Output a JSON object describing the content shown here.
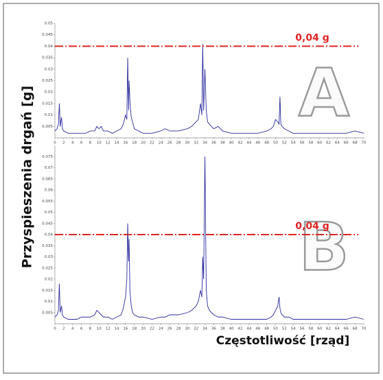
{
  "axis_labels": {
    "y": "Przyspieszenia drgań [g]",
    "x": "Częstotliwość [rząd]"
  },
  "chart_data": [
    {
      "type": "line",
      "panel_label": "A",
      "threshold": {
        "value": 0.04,
        "label": "0,04 g",
        "color": "#e02424"
      },
      "xlim": [
        0,
        70
      ],
      "xticks": [
        0,
        2,
        4,
        6,
        8,
        10,
        12,
        14,
        16,
        18,
        20,
        22,
        24,
        26,
        28,
        30,
        32,
        34,
        36,
        38,
        40,
        42,
        44,
        46,
        48,
        50,
        52,
        54,
        56,
        58,
        60,
        62,
        64,
        66,
        68,
        70
      ],
      "ylim": [
        0,
        0.05
      ],
      "yticks": [
        0.005,
        0.01,
        0.015,
        0.02,
        0.025,
        0.03,
        0.035,
        0.04,
        0.045,
        0.05
      ],
      "series": [
        {
          "color": "#2b2b9e",
          "x": [
            0,
            0.5,
            0.8,
            1,
            1.2,
            1.5,
            1.7,
            2,
            3,
            4,
            5,
            6,
            7,
            8,
            9,
            9.5,
            10,
            10.5,
            11,
            12,
            13,
            14,
            15,
            15.5,
            16,
            16.3,
            16.5,
            16.7,
            16.8,
            17,
            17.3,
            17.6,
            18,
            19,
            20,
            22,
            24,
            25,
            26,
            28,
            30,
            31,
            32,
            32.5,
            33,
            33.3,
            33.5,
            33.7,
            34,
            34.3,
            34.6,
            35,
            36,
            37,
            38,
            40,
            42,
            44,
            46,
            48,
            49,
            49.5,
            50,
            50.5,
            50.8,
            51,
            51.2,
            51.5,
            52,
            53,
            54,
            56,
            58,
            60,
            62,
            64,
            66,
            68,
            70
          ],
          "values": [
            0.003,
            0.004,
            0.006,
            0.015,
            0.005,
            0.009,
            0.004,
            0.003,
            0.002,
            0.002,
            0.002,
            0.002,
            0.002,
            0.003,
            0.003,
            0.005,
            0.004,
            0.005,
            0.003,
            0.003,
            0.002,
            0.003,
            0.004,
            0.006,
            0.01,
            0.008,
            0.035,
            0.012,
            0.025,
            0.016,
            0.009,
            0.007,
            0.004,
            0.003,
            0.002,
            0.002,
            0.003,
            0.004,
            0.003,
            0.003,
            0.004,
            0.005,
            0.007,
            0.008,
            0.015,
            0.01,
            0.041,
            0.012,
            0.03,
            0.012,
            0.007,
            0.006,
            0.004,
            0.005,
            0.003,
            0.002,
            0.002,
            0.002,
            0.002,
            0.003,
            0.004,
            0.005,
            0.008,
            0.007,
            0.006,
            0.018,
            0.006,
            0.005,
            0.004,
            0.003,
            0.002,
            0.002,
            0.002,
            0.002,
            0.002,
            0.002,
            0.002,
            0.003,
            0.002
          ]
        }
      ]
    },
    {
      "type": "line",
      "panel_label": "B",
      "threshold": {
        "value": 0.04,
        "label": "0,04 g",
        "color": "#e02424"
      },
      "xlim": [
        0,
        70
      ],
      "xticks": [
        0,
        2,
        4,
        6,
        8,
        10,
        12,
        14,
        16,
        18,
        20,
        22,
        24,
        26,
        28,
        30,
        32,
        34,
        36,
        38,
        40,
        42,
        44,
        46,
        48,
        50,
        52,
        54,
        56,
        58,
        60,
        62,
        64,
        66,
        68,
        70
      ],
      "ylim": [
        0,
        0.08
      ],
      "yticks": [
        0.005,
        0.01,
        0.015,
        0.02,
        0.025,
        0.03,
        0.035,
        0.04,
        0.045,
        0.05,
        0.055,
        0.06,
        0.065,
        0.07,
        0.075
      ],
      "series": [
        {
          "color": "#2b2b9e",
          "x": [
            0,
            0.5,
            0.8,
            1,
            1.2,
            1.5,
            1.7,
            2,
            3,
            4,
            5,
            6,
            7,
            8,
            9,
            9.5,
            10,
            10.5,
            11,
            12,
            13,
            14,
            15,
            15.5,
            16,
            16.3,
            16.5,
            16.7,
            16.8,
            17,
            17.3,
            17.6,
            18,
            19,
            20,
            22,
            24,
            25,
            26,
            28,
            30,
            31,
            32,
            32.5,
            33,
            33.3,
            33.5,
            33.7,
            34,
            34.3,
            34.6,
            35,
            36,
            37,
            38,
            40,
            42,
            44,
            46,
            48,
            49,
            49.5,
            50,
            50.5,
            50.8,
            51,
            51.2,
            51.5,
            52,
            53,
            54,
            56,
            58,
            60,
            62,
            64,
            66,
            68,
            70
          ],
          "values": [
            0.003,
            0.004,
            0.006,
            0.018,
            0.005,
            0.008,
            0.004,
            0.003,
            0.002,
            0.002,
            0.002,
            0.003,
            0.003,
            0.003,
            0.004,
            0.006,
            0.005,
            0.004,
            0.003,
            0.003,
            0.002,
            0.003,
            0.004,
            0.007,
            0.012,
            0.02,
            0.045,
            0.028,
            0.038,
            0.015,
            0.008,
            0.005,
            0.004,
            0.003,
            0.003,
            0.002,
            0.003,
            0.003,
            0.004,
            0.004,
            0.005,
            0.006,
            0.008,
            0.01,
            0.015,
            0.012,
            0.03,
            0.02,
            0.075,
            0.015,
            0.008,
            0.006,
            0.004,
            0.003,
            0.003,
            0.002,
            0.002,
            0.002,
            0.002,
            0.002,
            0.003,
            0.004,
            0.006,
            0.008,
            0.012,
            0.007,
            0.005,
            0.004,
            0.003,
            0.003,
            0.002,
            0.002,
            0.002,
            0.002,
            0.002,
            0.002,
            0.002,
            0.003,
            0.002
          ]
        }
      ]
    }
  ]
}
